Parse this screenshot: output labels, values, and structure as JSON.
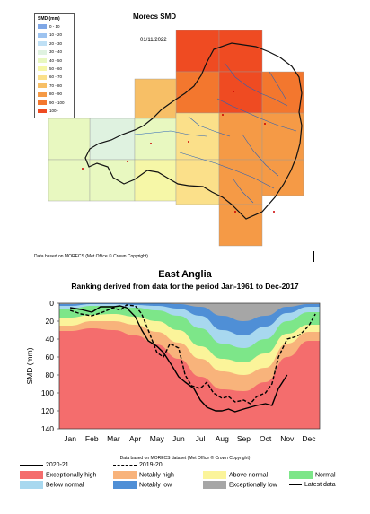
{
  "map": {
    "title": "Morecs SMD",
    "date": "01/11/2022",
    "legend_title": "SMD (mm)",
    "legend": [
      {
        "label": "0 - 10",
        "color": "#7fa7e6"
      },
      {
        "label": "10 - 20",
        "color": "#9dc3f0"
      },
      {
        "label": "20 - 30",
        "color": "#bfe0f5"
      },
      {
        "label": "30 - 40",
        "color": "#dff2e0"
      },
      {
        "label": "40 - 50",
        "color": "#e8f8c0"
      },
      {
        "label": "50 - 60",
        "color": "#f6f7a7"
      },
      {
        "label": "60 - 70",
        "color": "#fbe08a"
      },
      {
        "label": "70 - 80",
        "color": "#f7bf66"
      },
      {
        "label": "80 - 90",
        "color": "#f59a46"
      },
      {
        "label": "90 - 100",
        "color": "#f3772e"
      },
      {
        "label": "100+",
        "color": "#ef4b22"
      }
    ],
    "attribution": "Data based on MORECS (Met Office © Crown Copyright)"
  },
  "chart_title": "East Anglia",
  "chart_subtitle": "Ranking derived from data for the period Jan-1961 to Dec-2017",
  "chart_attribution": "Data based on MORECS dataset (Met Office © Crown Copyright)",
  "chart_data": {
    "type": "area",
    "categories": [
      "Jan",
      "Feb",
      "Mar",
      "Apr",
      "May",
      "Jun",
      "Jul",
      "Aug",
      "Sep",
      "Oct",
      "Nov",
      "Dec"
    ],
    "ylabel": "SMD (mm)",
    "ylim": [
      0,
      140
    ],
    "y_inverted": true,
    "yticks": [
      0,
      20,
      40,
      60,
      80,
      100,
      120,
      140
    ],
    "bands": [
      {
        "name": "Exceptionally high",
        "color": "#f46d6d",
        "upper": [
          31,
          28,
          30,
          36,
          46,
          62,
          82,
          96,
          98,
          88,
          60,
          42
        ]
      },
      {
        "name": "Notably high",
        "color": "#f8b37b",
        "upper": [
          25,
          20,
          20,
          24,
          32,
          44,
          62,
          76,
          80,
          72,
          45,
          32
        ]
      },
      {
        "name": "Above normal",
        "color": "#fbf49a",
        "upper": [
          16,
          13,
          12,
          15,
          20,
          30,
          48,
          62,
          66,
          56,
          34,
          24
        ]
      },
      {
        "name": "Normal",
        "color": "#7de689",
        "upper": [
          6,
          3,
          3,
          5,
          8,
          14,
          28,
          45,
          50,
          40,
          20,
          10
        ]
      },
      {
        "name": "Below normal",
        "color": "#a8d8ef",
        "upper": [
          3,
          1,
          1,
          2,
          3,
          6,
          14,
          30,
          36,
          26,
          11,
          4
        ]
      },
      {
        "name": "Notably low",
        "color": "#4f8fd6",
        "upper": [
          1,
          0,
          0,
          0,
          0,
          1,
          4,
          14,
          20,
          14,
          4,
          1
        ]
      },
      {
        "name": "Exceptionally low",
        "color": "#a6a6a6",
        "upper": [
          0,
          0,
          0,
          0,
          0,
          0,
          0,
          0,
          0,
          0,
          0,
          0
        ]
      }
    ],
    "series": [
      {
        "name": "2020-21",
        "style": "solid",
        "x": [
          1,
          1.5,
          2,
          2.4,
          3,
          3.3,
          3.6,
          4,
          4.3,
          4.6,
          5,
          5.3,
          5.7,
          6,
          6.3,
          6.7,
          7,
          7.3,
          7.7,
          8,
          8.3,
          8.6,
          9,
          9.3,
          9.6,
          10,
          10.3,
          10.6,
          11
        ],
        "y": [
          5,
          7,
          10,
          4,
          4,
          3,
          5,
          15,
          30,
          42,
          48,
          55,
          70,
          82,
          88,
          95,
          108,
          116,
          120,
          120,
          118,
          121,
          118,
          116,
          114,
          112,
          114,
          95,
          80
        ]
      },
      {
        "name": "2019-20",
        "style": "dashed",
        "x": [
          1,
          1.5,
          2,
          2.5,
          3,
          3.3,
          3.6,
          4,
          4.3,
          4.6,
          5,
          5.3,
          5.6,
          6,
          6.3,
          6.6,
          7,
          7.3,
          7.6,
          8,
          8.3,
          8.6,
          9,
          9.3,
          9.6,
          10,
          10.3,
          10.6,
          11,
          11.3,
          11.6,
          12,
          12.3
        ],
        "y": [
          8,
          12,
          14,
          10,
          5,
          8,
          2,
          3,
          12,
          30,
          55,
          60,
          45,
          50,
          80,
          92,
          95,
          88,
          100,
          106,
          104,
          110,
          108,
          112,
          104,
          100,
          90,
          60,
          40,
          38,
          35,
          25,
          12
        ]
      }
    ],
    "legend": [
      {
        "name": "2020-21",
        "kind": "line-solid"
      },
      {
        "name": "2019-20",
        "kind": "line-dashed"
      },
      {
        "name": "Exceptionally high",
        "kind": "swatch",
        "color": "#f46d6d"
      },
      {
        "name": "Notably high",
        "kind": "swatch",
        "color": "#f8b37b"
      },
      {
        "name": "Above normal",
        "kind": "swatch",
        "color": "#fbf49a"
      },
      {
        "name": "Normal",
        "kind": "swatch",
        "color": "#7de689"
      },
      {
        "name": "Below normal",
        "kind": "swatch",
        "color": "#a8d8ef"
      },
      {
        "name": "Notably low",
        "kind": "swatch",
        "color": "#4f8fd6"
      },
      {
        "name": "Exceptionally low",
        "kind": "swatch",
        "color": "#a6a6a6"
      },
      {
        "name": "Latest data",
        "kind": "line-solid"
      }
    ]
  }
}
